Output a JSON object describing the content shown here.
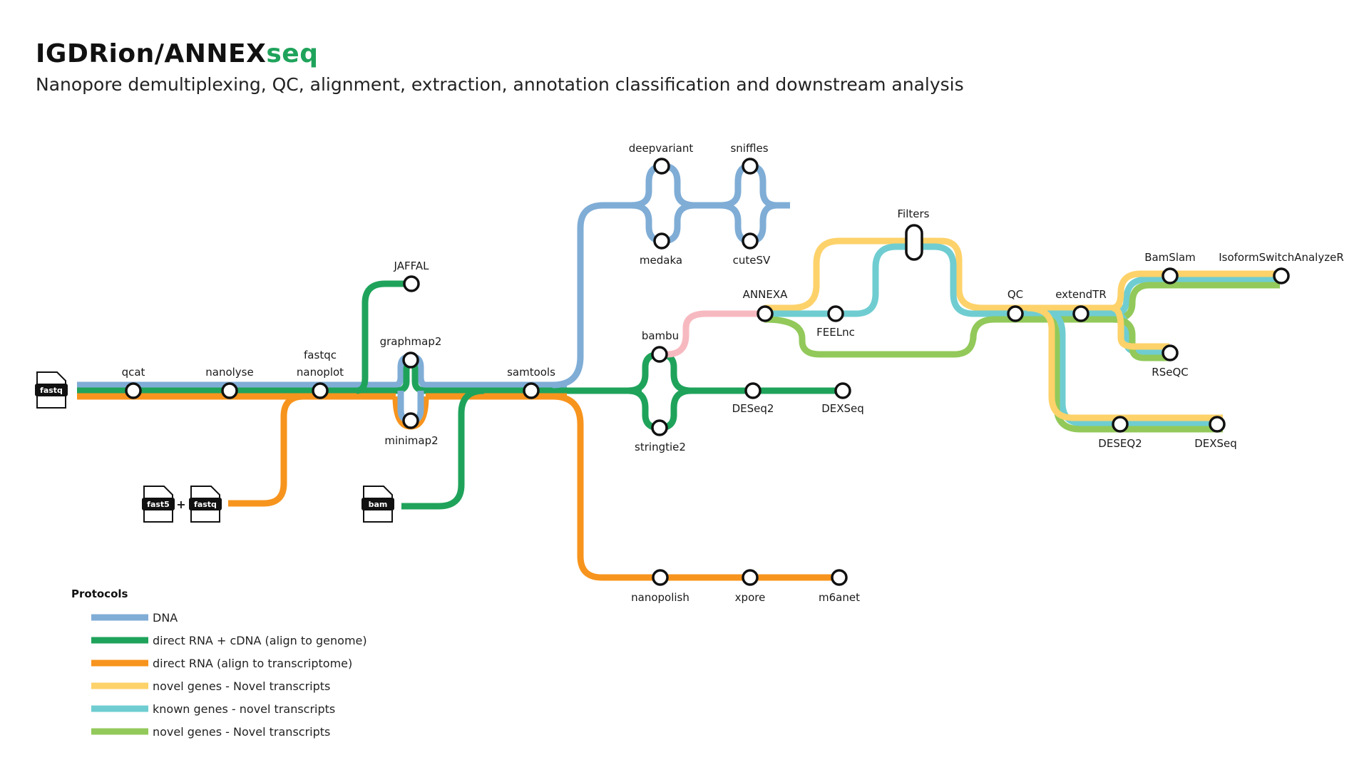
{
  "header": {
    "title_main": "IGDRion/ANNEX",
    "title_accent": "seq",
    "subtitle": "Nanopore demultiplexing, QC, alignment, extraction, annotation classification and downstream analysis"
  },
  "colors": {
    "dna": "#7fadd6",
    "genome": "#1fa35b",
    "transcriptome": "#f7941d",
    "novel_novel": "#fdd26a",
    "known_novel": "#6fcdd1",
    "novel_novel_2": "#92c95a",
    "bambu_link": "#f7b9c0",
    "title_accent": "#1fa35b"
  },
  "inputs": {
    "fastq": "fastq",
    "fast5": "fast5",
    "fastq2": "fastq",
    "plus": "+",
    "bam": "bam"
  },
  "stations": {
    "qcat": "qcat",
    "nanolyse": "nanolyse",
    "fastqc": "fastqc",
    "nanoplot": "nanoplot",
    "jaffal": "JAFFAL",
    "graphmap2": "graphmap2",
    "minimap2": "minimap2",
    "samtools": "samtools",
    "deepvariant": "deepvariant",
    "medaka": "medaka",
    "sniffles": "sniffles",
    "cutesv": "cuteSV",
    "bambu": "bambu",
    "stringtie2": "stringtie2",
    "deseq2": "DESeq2",
    "dexseq": "DEXSeq",
    "annexa": "ANNEXA",
    "feelnc": "FEELnc",
    "filters": "Filters",
    "qc": "QC",
    "extendtr": "extendTR",
    "bamslam": "BamSlam",
    "isoformswitch": "IsoformSwitchAnalyzeR",
    "rseqc": "RSeQC",
    "deseq2_b": "DESEQ2",
    "dexseq_b": "DEXSeq",
    "nanopolish": "nanopolish",
    "xpore": "xpore",
    "m6anet": "m6anet"
  },
  "legend": {
    "title": "Protocols",
    "items": [
      {
        "label": "DNA",
        "color": "#7fadd6"
      },
      {
        "label": "direct RNA + cDNA (align to genome)",
        "color": "#1fa35b"
      },
      {
        "label": "direct RNA (align to transcriptome)",
        "color": "#f7941d"
      },
      {
        "label": "novel genes  -  Novel transcripts",
        "color": "#fdd26a"
      },
      {
        "label": "known genes  -  novel transcripts",
        "color": "#6fcdd1"
      },
      {
        "label": "novel genes  -  Novel transcripts",
        "color": "#92c95a"
      }
    ]
  }
}
